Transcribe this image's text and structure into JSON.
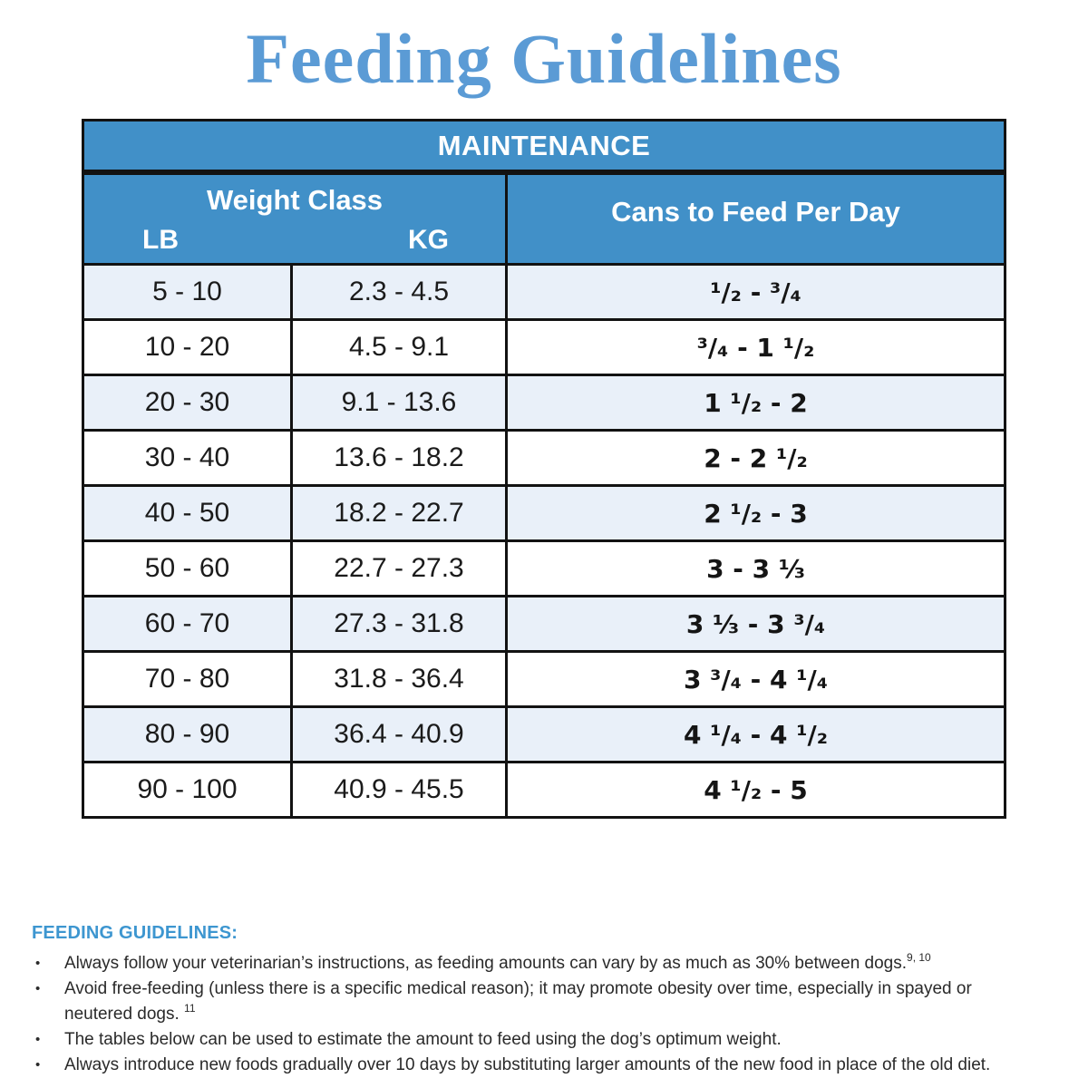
{
  "title": "Feeding Guidelines",
  "table": {
    "header": "MAINTENANCE",
    "weight_class_label": "Weight Class",
    "lb_label": "LB",
    "kg_label": "KG",
    "cans_label": "Cans to Feed Per Day",
    "rows": [
      {
        "lb": "5 - 10",
        "kg": "2.3 - 4.5",
        "cans": "¹/₂ - ³/₄"
      },
      {
        "lb": "10 - 20",
        "kg": "4.5 - 9.1",
        "cans": "³/₄ - 1 ¹/₂"
      },
      {
        "lb": "20 - 30",
        "kg": "9.1 - 13.6",
        "cans": "1 ¹/₂ - 2"
      },
      {
        "lb": "30 - 40",
        "kg": "13.6 - 18.2",
        "cans": "2 - 2 ¹/₂"
      },
      {
        "lb": "40 - 50",
        "kg": "18.2 - 22.7",
        "cans": "2 ¹/₂ - 3"
      },
      {
        "lb": "50 - 60",
        "kg": "22.7 - 27.3",
        "cans": "3 - 3 ⅓"
      },
      {
        "lb": "60 - 70",
        "kg": "27.3 - 31.8",
        "cans": "3 ⅓ - 3 ³/₄"
      },
      {
        "lb": "70 - 80",
        "kg": "31.8 - 36.4",
        "cans": "3 ³/₄ - 4 ¹/₄"
      },
      {
        "lb": "80 - 90",
        "kg": "36.4 - 40.9",
        "cans": "4 ¹/₄ - 4 ¹/₂"
      },
      {
        "lb": "90 - 100",
        "kg": "40.9 - 45.5",
        "cans": "4 ¹/₂ - 5"
      }
    ]
  },
  "footer": {
    "heading": "FEEDING GUIDELINES:",
    "bullets": [
      {
        "text": "Always follow your veterinarian’s instructions, as feeding amounts can vary by as much as 30% between dogs.",
        "sup": "9, 10"
      },
      {
        "text": "Avoid free-feeding (unless there is a specific medical reason); it may promote obesity over time, especially in spayed or neutered dogs. ",
        "sup": "11"
      },
      {
        "text": "The tables below can be used to estimate the amount to feed using the dog’s optimum weight.",
        "sup": ""
      },
      {
        "text": "Always introduce new foods gradually over 10 days by substituting larger amounts of the new food in place of the old diet.",
        "sup": ""
      }
    ]
  },
  "colors": {
    "title_blue": "#5B9BD5",
    "table_header_blue": "#4190C8",
    "row_alt_blue": "#E9F0F9",
    "footer_heading_blue": "#3D96D0",
    "border_black": "#121212"
  }
}
